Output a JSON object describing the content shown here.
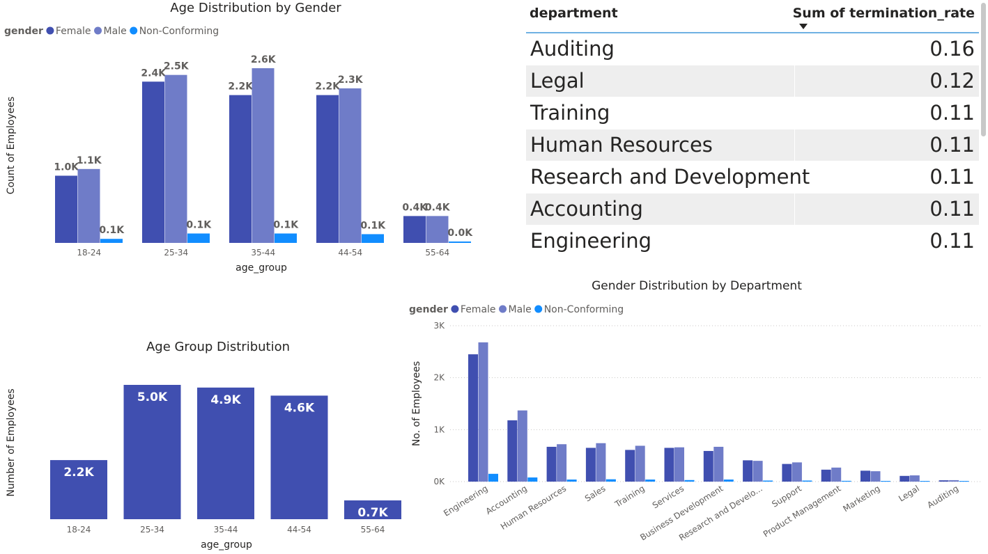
{
  "colors": {
    "female": "#404fb0",
    "male": "#6f7cc8",
    "non_conforming": "#118dff",
    "single": "#404fb0"
  },
  "chart_data": [
    {
      "id": "age-gender",
      "type": "bar",
      "title": "Age Distribution by Gender",
      "legend_title": "gender",
      "legend_position": "top-left",
      "xlabel": "age_group",
      "ylabel": "Count of Employees",
      "categories": [
        "18-24",
        "25-34",
        "35-44",
        "44-54",
        "55-64"
      ],
      "series": [
        {
          "name": "Female",
          "values": [
            1.0,
            2.4,
            2.2,
            2.2,
            0.4
          ],
          "labels": [
            "1.0K",
            "2.4K",
            "2.2K",
            "2.2K",
            "0.4K"
          ]
        },
        {
          "name": "Male",
          "values": [
            1.1,
            2.5,
            2.6,
            2.3,
            0.4
          ],
          "labels": [
            "1.1K",
            "2.5K",
            "2.6K",
            "2.3K",
            "0.4K"
          ]
        },
        {
          "name": "Non-Conforming",
          "values": [
            0.06,
            0.14,
            0.14,
            0.13,
            0.02
          ],
          "labels": [
            "0.1K",
            "0.1K",
            "0.1K",
            "0.1K",
            "0.0K"
          ]
        }
      ],
      "ylim": [
        0,
        2.6
      ],
      "grid": false
    },
    {
      "id": "age-group",
      "type": "bar",
      "title": "Age Group Distribution",
      "xlabel": "age_group",
      "ylabel": "Number of Employees",
      "categories": [
        "18-24",
        "25-34",
        "35-44",
        "44-54",
        "55-64"
      ],
      "values": [
        2.2,
        5.0,
        4.9,
        4.6,
        0.7
      ],
      "labels": [
        "2.2K",
        "5.0K",
        "4.9K",
        "4.6K",
        "0.7K"
      ],
      "ylim": [
        0,
        5.0
      ],
      "grid": false
    },
    {
      "id": "gender-dept",
      "type": "bar",
      "title": "Gender Distribution by Department",
      "legend_title": "gender",
      "legend_position": "top-left",
      "xlabel": "",
      "ylabel": "No. of Employees",
      "categories": [
        "Engineering",
        "Accounting",
        "Human Resources",
        "Sales",
        "Training",
        "Services",
        "Business Development",
        "Research and Develo...",
        "Support",
        "Product Management",
        "Marketing",
        "Legal",
        "Auditing"
      ],
      "series": [
        {
          "name": "Female",
          "values": [
            2450,
            1180,
            670,
            650,
            610,
            650,
            590,
            410,
            340,
            230,
            210,
            110,
            25
          ]
        },
        {
          "name": "Male",
          "values": [
            2680,
            1370,
            720,
            740,
            690,
            660,
            670,
            400,
            370,
            270,
            200,
            120,
            28
          ]
        },
        {
          "name": "Non-Conforming",
          "values": [
            150,
            80,
            40,
            45,
            40,
            30,
            40,
            20,
            20,
            15,
            10,
            5,
            2
          ]
        }
      ],
      "yticks": [
        "0K",
        "1K",
        "2K",
        "3K"
      ],
      "ylim": [
        0,
        3000
      ],
      "grid": true
    },
    {
      "id": "termination-table",
      "type": "table",
      "columns": [
        "department",
        "Sum of termination_rate"
      ],
      "rows": [
        [
          "Auditing",
          "0.16"
        ],
        [
          "Legal",
          "0.12"
        ],
        [
          "Training",
          "0.11"
        ],
        [
          "Human Resources",
          "0.11"
        ],
        [
          "Research and Development",
          "0.11"
        ],
        [
          "Accounting",
          "0.11"
        ],
        [
          "Engineering",
          "0.11"
        ]
      ]
    }
  ]
}
